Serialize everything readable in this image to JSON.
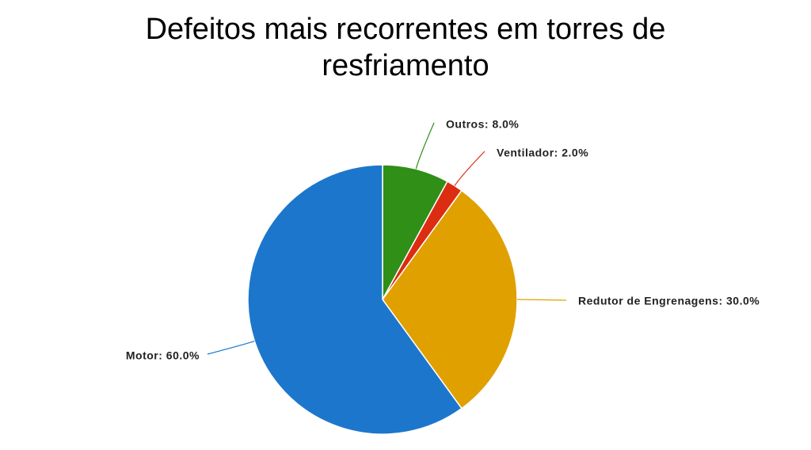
{
  "chart_data": {
    "type": "pie",
    "title": "Defeitos mais recorrentes em torres de resfriamento",
    "values": [
      8,
      2,
      30,
      60
    ],
    "value_labels": [
      "Outros: 8.0%",
      "Ventilador: 2.0%",
      "Redutor de Engrenagens: 30.0%",
      "Motor: 60.0%"
    ],
    "colors": [
      "#2f8f16",
      "#dc2c12",
      "#e0a000",
      "#1c77cc"
    ]
  }
}
